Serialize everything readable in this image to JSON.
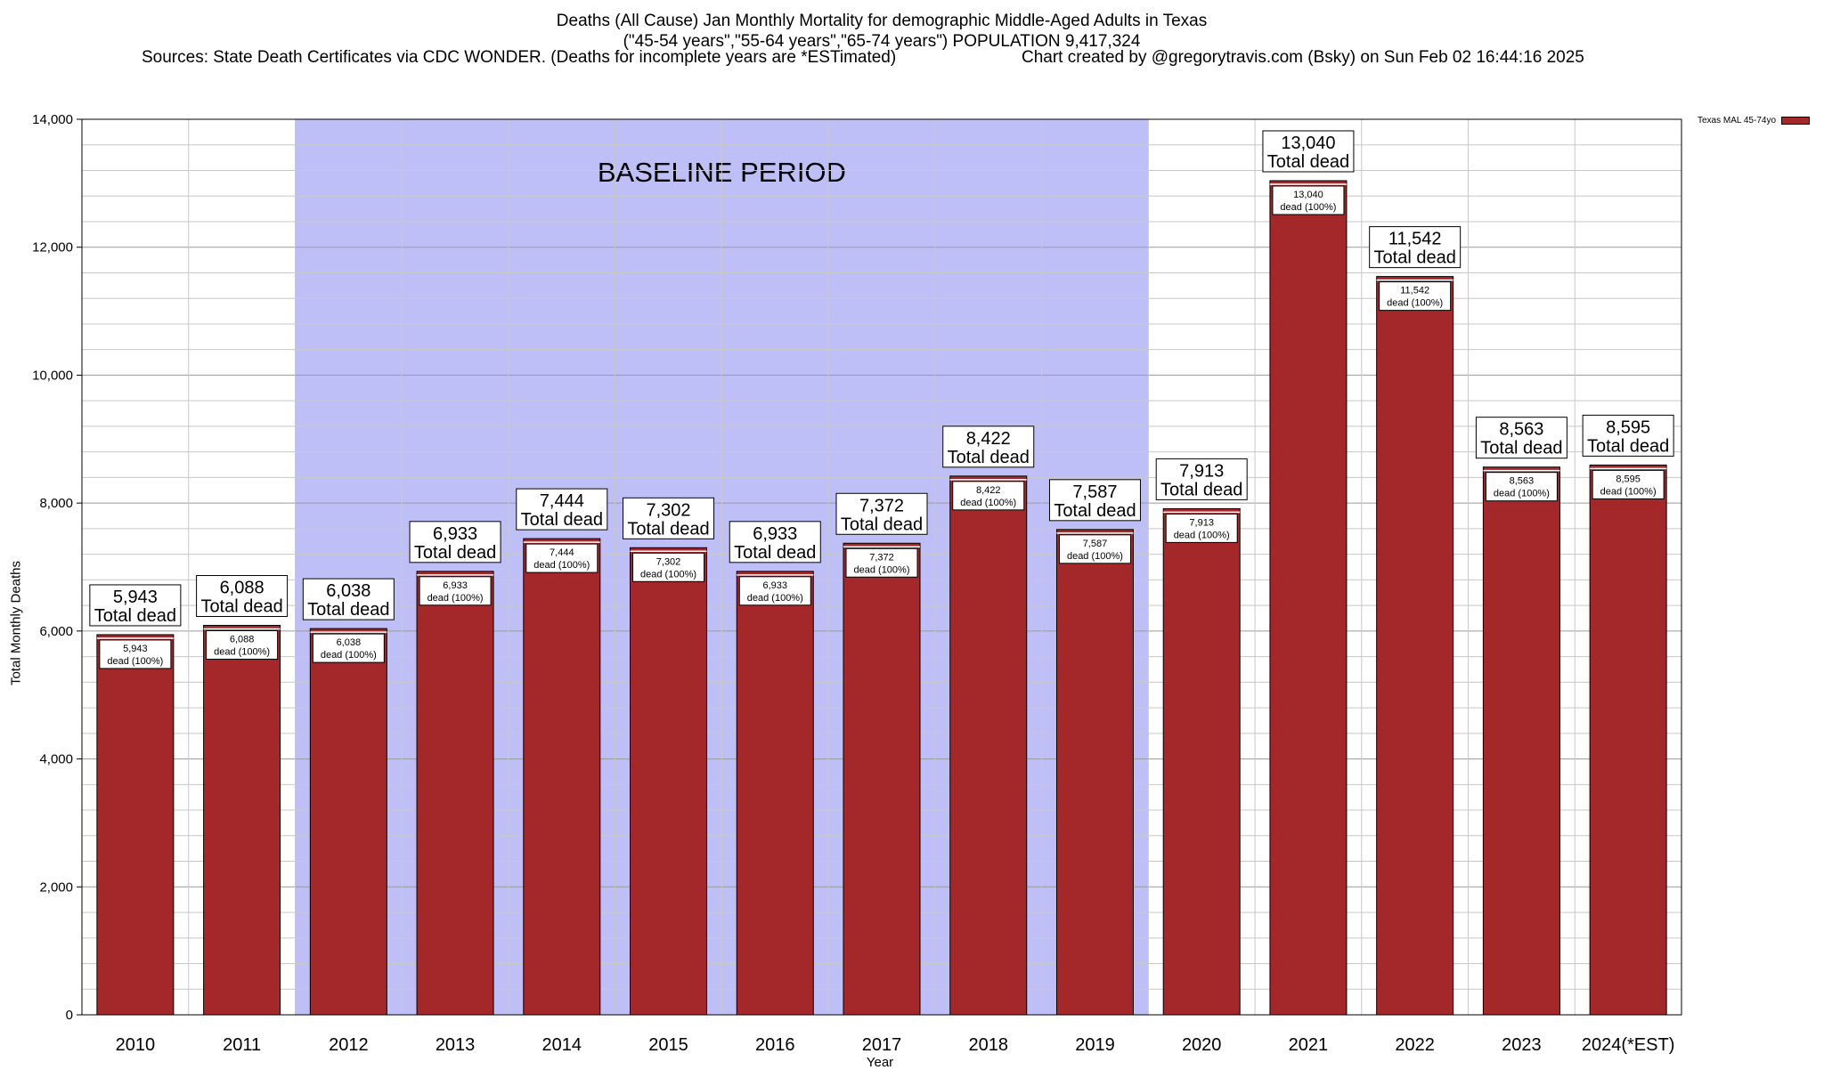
{
  "chart_data": {
    "type": "bar",
    "title": "Deaths (All Cause) Jan Monthly Mortality for demographic Middle-Aged Adults in Texas",
    "subtitle": "(\"45-54 years\",\"55-64 years\",\"65-74 years\") POPULATION 9,417,324",
    "sources": "Sources: State Death Certificates via CDC WONDER. (Deaths for incomplete years are *ESTimated)",
    "credit": "Chart created by @gregorytravis.com (Bsky) on Sun Feb 02 16:44:16 2025",
    "xlabel": "Year",
    "ylabel": "Total Monthly Deaths",
    "ylim": [
      0,
      14000
    ],
    "yticks": [
      0,
      2000,
      4000,
      6000,
      8000,
      10000,
      12000,
      14000
    ],
    "ytick_labels": [
      "0",
      "2,000",
      "4,000",
      "6,000",
      "8,000",
      "10,000",
      "12,000",
      "14,000"
    ],
    "categories": [
      "2010",
      "2011",
      "2012",
      "2013",
      "2014",
      "2015",
      "2016",
      "2017",
      "2018",
      "2019",
      "2020",
      "2021",
      "2022",
      "2023",
      "2024(*EST)"
    ],
    "values": [
      5943,
      6088,
      6038,
      6933,
      7444,
      7302,
      6933,
      7372,
      8422,
      7587,
      7913,
      13040,
      11542,
      8563,
      8595
    ],
    "value_labels": [
      "5,943",
      "6,088",
      "6,038",
      "6,933",
      "7,444",
      "7,302",
      "6,933",
      "7,372",
      "8,422",
      "7,587",
      "7,913",
      "13,040",
      "11,542",
      "8,563",
      "8,595"
    ],
    "top_label_suffix": "Total dead",
    "inner_label_suffix": "dead (100%)",
    "baseline": {
      "label": "BASELINE PERIOD",
      "start": "2012",
      "end": "2019"
    },
    "legend": {
      "label": "Texas MAL 45-74yo",
      "position": "top-right"
    },
    "grid": true,
    "colors": {
      "bar": "#a4282a",
      "baseline": "#bfbff8",
      "grid": "#c8c8c8"
    }
  }
}
